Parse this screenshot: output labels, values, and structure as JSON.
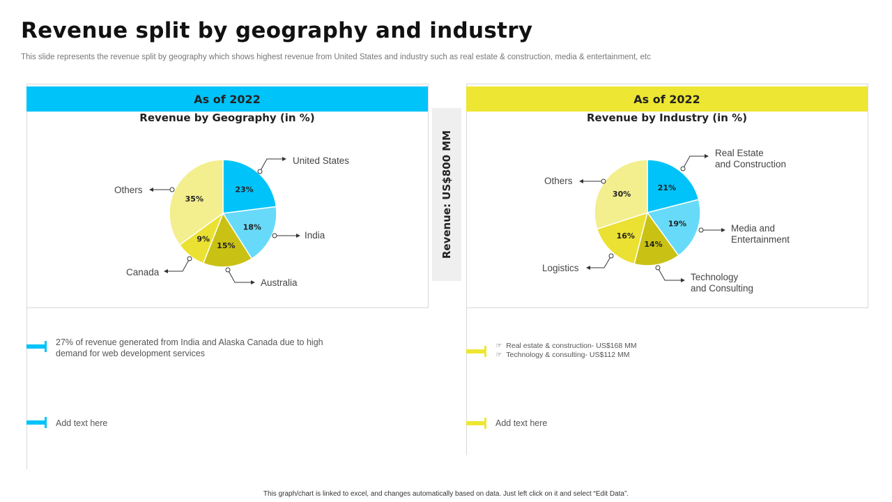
{
  "title": "Revenue split by geography and industry",
  "subtitle": "This slide represents the revenue split by geography which shows highest revenue from United States and industry such as real estate & construction, media & entertainment, etc",
  "center_label": "Revenue: US$800 MM",
  "colors": {
    "cyan": "#00c3f9",
    "yellow": "#ede633"
  },
  "chart_data": [
    {
      "type": "pie",
      "header": "As of 2022",
      "title": "Revenue by Geography (in %)",
      "categories": [
        "United States",
        "India",
        "Australia",
        "Canada",
        "Others"
      ],
      "values": [
        23,
        18,
        15,
        9,
        35
      ],
      "colors": [
        "#00c3f9",
        "#68daf9",
        "#c9c214",
        "#ebe132",
        "#f3ee8e"
      ]
    },
    {
      "type": "pie",
      "header": "As of 2022",
      "title": "Revenue by Industry (in %)",
      "categories": [
        "Real Estate and Construction",
        "Media and Entertainment",
        "Technology and Consulting",
        "Logistics",
        "Others"
      ],
      "values": [
        21,
        19,
        14,
        16,
        30
      ],
      "colors": [
        "#00c3f9",
        "#68daf9",
        "#c9c214",
        "#ebe132",
        "#f3ee8e"
      ]
    }
  ],
  "labels": {
    "geo": [
      "United States",
      "India",
      "Australia",
      "Canada",
      "Others"
    ],
    "ind": [
      [
        "Real Estate",
        "and Construction"
      ],
      [
        "Media and",
        "Entertainment"
      ],
      [
        "Technology",
        "and Consulting"
      ],
      "Logistics",
      "Others"
    ]
  },
  "left_notes": [
    "27% of revenue  generated from India and Alaska Canada due to high demand for web development  services",
    "Add text here"
  ],
  "right_notes": {
    "bullets": [
      "Real estate & construction- US$168 MM",
      "Technology & consulting- US$112 MM"
    ],
    "bullet_icon": "pointing-hand-icon",
    "text": "Add text here"
  },
  "footer": "This graph/chart is linked to excel, and changes automatically based on data. Just left click on it and select “Edit Data”."
}
